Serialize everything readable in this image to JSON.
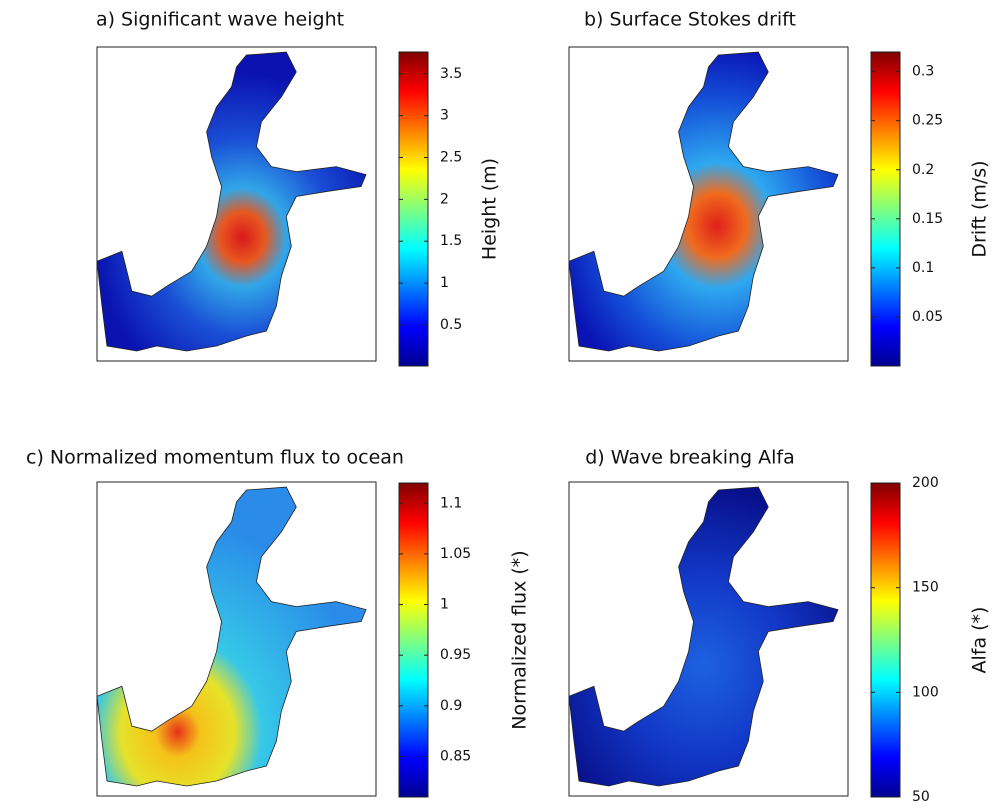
{
  "chart_data": [
    {
      "type": "map",
      "title": "a) Significant wave height",
      "colorbar_label": "Height (m)",
      "ylim": [
        0.01,
        3.76
      ],
      "yticks": [
        0.5,
        1,
        1.5,
        2,
        2.5,
        3,
        3.5
      ],
      "colormap": "jet"
    },
    {
      "type": "map",
      "title": "b) Surface Stokes drift",
      "colorbar_label": "Drift (m/s)",
      "ylim": [
        0,
        0.32
      ],
      "yticks": [
        0.05,
        0.1,
        0.15,
        0.2,
        0.25,
        0.3
      ],
      "colormap": "jet"
    },
    {
      "type": "map",
      "title": "c) Normalized momentum flux to ocean",
      "colorbar_label": "Normalized flux (*)",
      "ylim": [
        0.81,
        1.12
      ],
      "yticks": [
        0.85,
        0.9,
        0.95,
        1,
        1.05,
        1.1
      ],
      "colormap": "jet"
    },
    {
      "type": "map",
      "title": "d) Wave breaking Alfa",
      "colorbar_label": "Alfa (*)",
      "ylim": [
        50,
        200
      ],
      "yticks": [
        50,
        100,
        150,
        200
      ],
      "colormap": "jet"
    }
  ]
}
